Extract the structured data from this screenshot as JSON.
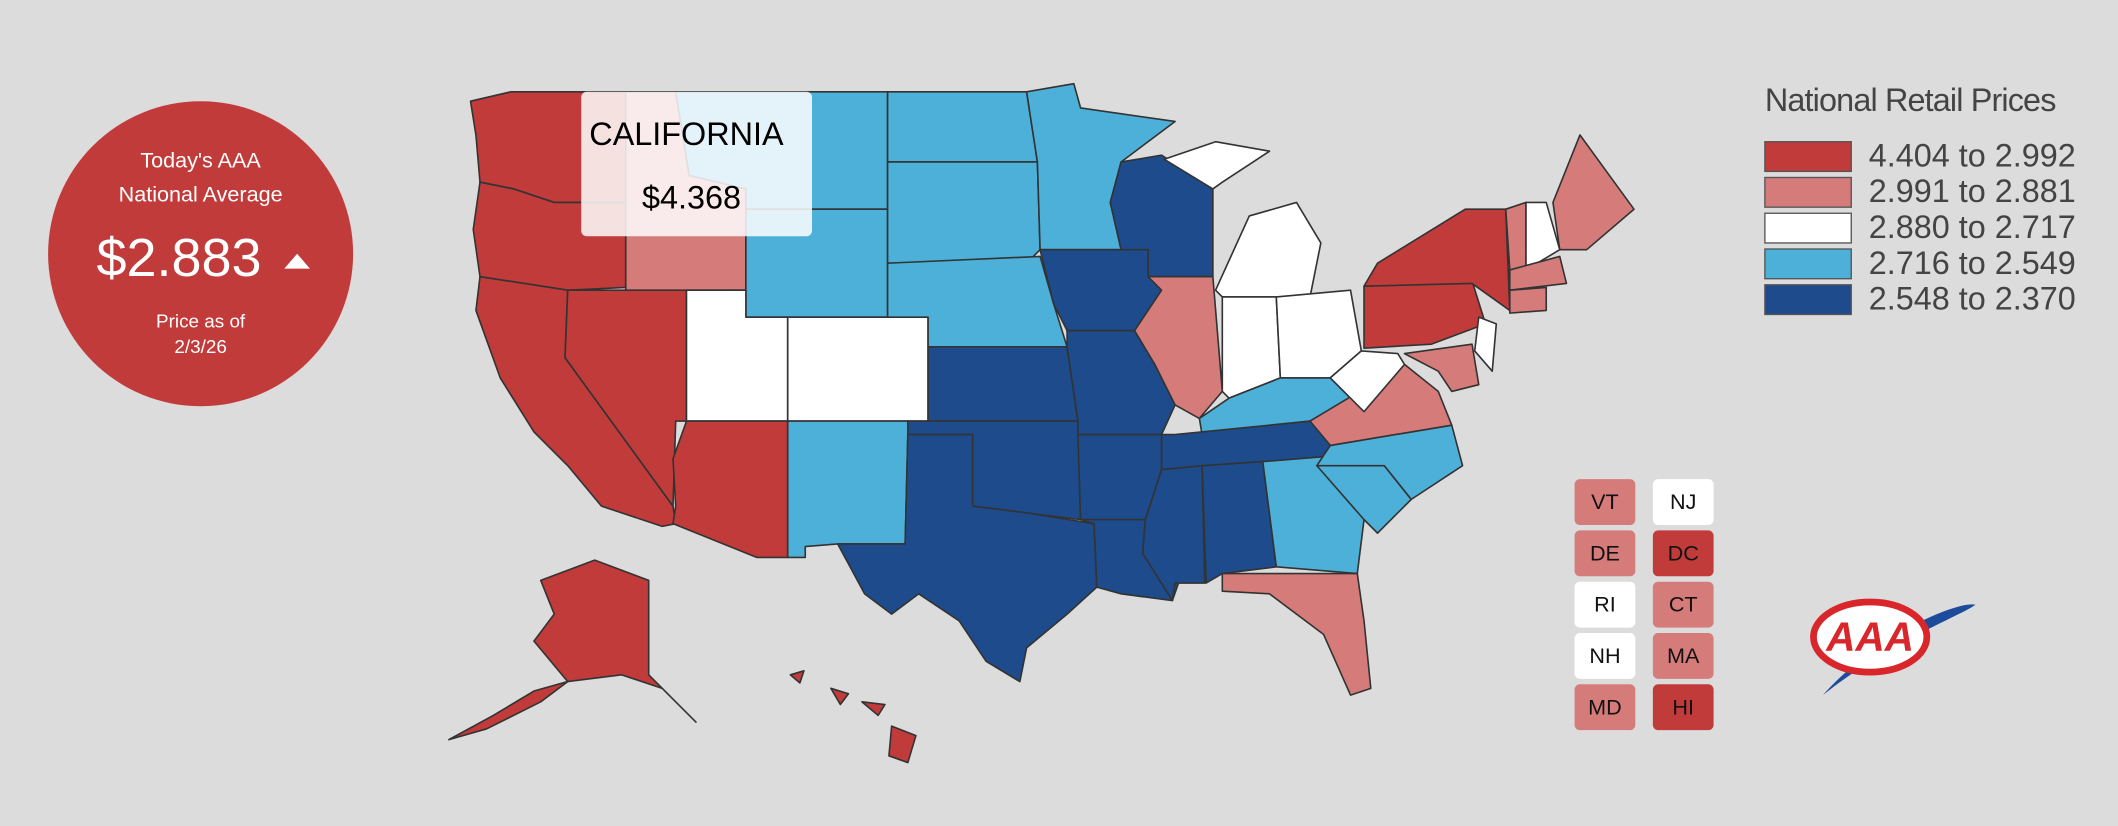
{
  "national_average": {
    "heading": [
      "Today's AAA",
      "National Average"
    ],
    "price": "$2.883",
    "as_of": [
      "Price as of",
      "2/3/26"
    ]
  },
  "tooltip": {
    "state": "CALIFORNIA",
    "price": "$4.368"
  },
  "legend": {
    "title": "National Retail Prices",
    "items": [
      {
        "label": "4.404 to 2.992",
        "color": "#c13b3b"
      },
      {
        "label": "2.991 to 2.881",
        "color": "#d57c7b"
      },
      {
        "label": "2.880 to 2.717",
        "color": "#ffffff"
      },
      {
        "label": "2.716 to 2.549",
        "color": "#4db0d8"
      },
      {
        "label": "2.548 to 2.370",
        "color": "#1d4b8b"
      }
    ]
  },
  "small_states": [
    {
      "label": "VT",
      "tier": 1
    },
    {
      "label": "NJ",
      "tier": 2
    },
    {
      "label": "DE",
      "tier": 1
    },
    {
      "label": "DC",
      "tier": 0
    },
    {
      "label": "RI",
      "tier": 2
    },
    {
      "label": "CT",
      "tier": 1
    },
    {
      "label": "NH",
      "tier": 2
    },
    {
      "label": "MA",
      "tier": 1
    },
    {
      "label": "MD",
      "tier": 1
    },
    {
      "label": "HI",
      "tier": 0
    }
  ],
  "logo": "AAA"
}
